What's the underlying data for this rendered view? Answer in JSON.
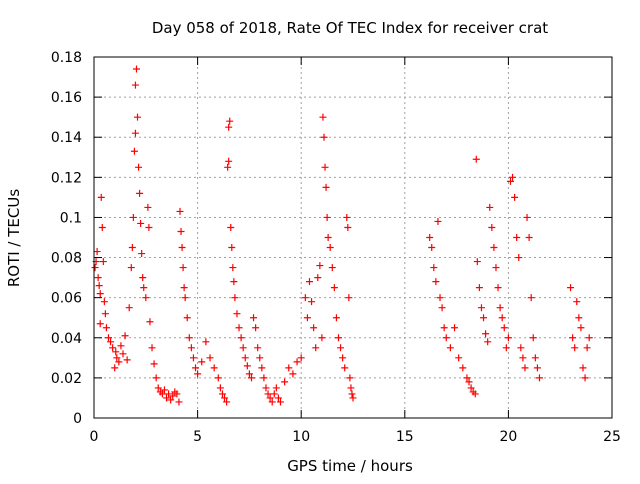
{
  "chart_data": {
    "type": "scatter",
    "title": "Day 058 of 2018, Rate Of TEC Index for receiver crat",
    "xlabel": "GPS time / hours",
    "ylabel": "ROTI / TECUs",
    "xlim": [
      0,
      25
    ],
    "ylim": [
      0,
      0.18
    ],
    "xticks": [
      0,
      5,
      10,
      15,
      20,
      25
    ],
    "xtick_labels": [
      "0",
      "5",
      "10",
      "15",
      "20",
      "25"
    ],
    "yticks": [
      0,
      0.02,
      0.04,
      0.06,
      0.08,
      0.1,
      0.12,
      0.14,
      0.16,
      0.18
    ],
    "ytick_labels": [
      "0",
      "0.02",
      "0.04",
      "0.06",
      "0.08",
      "0.1",
      "0.12",
      "0.14",
      "0.16",
      "0.18"
    ],
    "grid": true,
    "marker": "+",
    "color": "#ff0000",
    "series": [
      {
        "name": "ROTI",
        "points": [
          [
            0.05,
            0.075
          ],
          [
            0.1,
            0.078
          ],
          [
            0.15,
            0.083
          ],
          [
            0.2,
            0.07
          ],
          [
            0.25,
            0.066
          ],
          [
            0.3,
            0.062
          ],
          [
            0.3,
            0.047
          ],
          [
            0.35,
            0.11
          ],
          [
            0.4,
            0.095
          ],
          [
            0.45,
            0.078
          ],
          [
            0.5,
            0.058
          ],
          [
            0.55,
            0.052
          ],
          [
            0.6,
            0.045
          ],
          [
            0.7,
            0.04
          ],
          [
            0.8,
            0.038
          ],
          [
            0.9,
            0.035
          ],
          [
            1.0,
            0.025
          ],
          [
            1.05,
            0.033
          ],
          [
            1.1,
            0.03
          ],
          [
            1.2,
            0.028
          ],
          [
            1.3,
            0.036
          ],
          [
            1.4,
            0.032
          ],
          [
            1.5,
            0.041
          ],
          [
            1.6,
            0.029
          ],
          [
            1.7,
            0.055
          ],
          [
            1.8,
            0.075
          ],
          [
            1.85,
            0.085
          ],
          [
            1.9,
            0.1
          ],
          [
            1.95,
            0.133
          ],
          [
            2.0,
            0.142
          ],
          [
            2.0,
            0.166
          ],
          [
            2.05,
            0.174
          ],
          [
            2.1,
            0.15
          ],
          [
            2.15,
            0.125
          ],
          [
            2.2,
            0.112
          ],
          [
            2.25,
            0.097
          ],
          [
            2.3,
            0.082
          ],
          [
            2.35,
            0.07
          ],
          [
            2.4,
            0.065
          ],
          [
            2.5,
            0.06
          ],
          [
            2.6,
            0.105
          ],
          [
            2.65,
            0.095
          ],
          [
            2.7,
            0.048
          ],
          [
            2.8,
            0.035
          ],
          [
            2.9,
            0.027
          ],
          [
            3.0,
            0.02
          ],
          [
            3.1,
            0.015
          ],
          [
            3.2,
            0.013
          ],
          [
            3.3,
            0.012
          ],
          [
            3.4,
            0.014
          ],
          [
            3.5,
            0.01
          ],
          [
            3.6,
            0.012
          ],
          [
            3.7,
            0.009
          ],
          [
            3.8,
            0.011
          ],
          [
            3.9,
            0.013
          ],
          [
            4.0,
            0.012
          ],
          [
            4.1,
            0.008
          ],
          [
            4.15,
            0.103
          ],
          [
            4.2,
            0.093
          ],
          [
            4.25,
            0.085
          ],
          [
            4.3,
            0.075
          ],
          [
            4.35,
            0.065
          ],
          [
            4.4,
            0.06
          ],
          [
            4.5,
            0.05
          ],
          [
            4.6,
            0.04
          ],
          [
            4.7,
            0.035
          ],
          [
            4.8,
            0.03
          ],
          [
            4.9,
            0.025
          ],
          [
            5.0,
            0.022
          ],
          [
            5.2,
            0.028
          ],
          [
            5.4,
            0.038
          ],
          [
            5.6,
            0.03
          ],
          [
            5.8,
            0.025
          ],
          [
            6.0,
            0.02
          ],
          [
            6.1,
            0.015
          ],
          [
            6.2,
            0.012
          ],
          [
            6.3,
            0.01
          ],
          [
            6.4,
            0.008
          ],
          [
            6.45,
            0.125
          ],
          [
            6.5,
            0.128
          ],
          [
            6.5,
            0.145
          ],
          [
            6.55,
            0.148
          ],
          [
            6.6,
            0.095
          ],
          [
            6.65,
            0.085
          ],
          [
            6.7,
            0.075
          ],
          [
            6.75,
            0.068
          ],
          [
            6.8,
            0.06
          ],
          [
            6.9,
            0.052
          ],
          [
            7.0,
            0.045
          ],
          [
            7.1,
            0.04
          ],
          [
            7.2,
            0.035
          ],
          [
            7.3,
            0.03
          ],
          [
            7.4,
            0.026
          ],
          [
            7.5,
            0.022
          ],
          [
            7.6,
            0.02
          ],
          [
            7.7,
            0.05
          ],
          [
            7.8,
            0.045
          ],
          [
            7.9,
            0.035
          ],
          [
            8.0,
            0.03
          ],
          [
            8.1,
            0.025
          ],
          [
            8.2,
            0.02
          ],
          [
            8.3,
            0.015
          ],
          [
            8.4,
            0.012
          ],
          [
            8.5,
            0.01
          ],
          [
            8.6,
            0.008
          ],
          [
            8.7,
            0.012
          ],
          [
            8.8,
            0.015
          ],
          [
            8.9,
            0.01
          ],
          [
            9.0,
            0.008
          ],
          [
            9.2,
            0.018
          ],
          [
            9.4,
            0.025
          ],
          [
            9.6,
            0.022
          ],
          [
            9.8,
            0.028
          ],
          [
            10.0,
            0.03
          ],
          [
            10.2,
            0.06
          ],
          [
            10.3,
            0.05
          ],
          [
            10.4,
            0.068
          ],
          [
            10.5,
            0.058
          ],
          [
            10.6,
            0.045
          ],
          [
            10.7,
            0.035
          ],
          [
            10.8,
            0.07
          ],
          [
            10.9,
            0.076
          ],
          [
            11.0,
            0.04
          ],
          [
            11.05,
            0.15
          ],
          [
            11.1,
            0.14
          ],
          [
            11.15,
            0.125
          ],
          [
            11.2,
            0.115
          ],
          [
            11.25,
            0.1
          ],
          [
            11.3,
            0.09
          ],
          [
            11.4,
            0.085
          ],
          [
            11.5,
            0.075
          ],
          [
            11.6,
            0.065
          ],
          [
            11.7,
            0.05
          ],
          [
            11.8,
            0.04
          ],
          [
            11.9,
            0.035
          ],
          [
            12.0,
            0.03
          ],
          [
            12.1,
            0.025
          ],
          [
            12.2,
            0.1
          ],
          [
            12.25,
            0.095
          ],
          [
            12.3,
            0.06
          ],
          [
            12.35,
            0.02
          ],
          [
            12.4,
            0.015
          ],
          [
            12.45,
            0.012
          ],
          [
            12.5,
            0.01
          ],
          [
            16.2,
            0.09
          ],
          [
            16.3,
            0.085
          ],
          [
            16.4,
            0.075
          ],
          [
            16.5,
            0.068
          ],
          [
            16.6,
            0.098
          ],
          [
            16.7,
            0.06
          ],
          [
            16.8,
            0.055
          ],
          [
            16.9,
            0.045
          ],
          [
            17.0,
            0.04
          ],
          [
            17.2,
            0.035
          ],
          [
            17.4,
            0.045
          ],
          [
            17.6,
            0.03
          ],
          [
            17.8,
            0.025
          ],
          [
            18.0,
            0.02
          ],
          [
            18.1,
            0.018
          ],
          [
            18.2,
            0.015
          ],
          [
            18.3,
            0.013
          ],
          [
            18.4,
            0.012
          ],
          [
            18.45,
            0.129
          ],
          [
            18.5,
            0.078
          ],
          [
            18.6,
            0.065
          ],
          [
            18.7,
            0.055
          ],
          [
            18.8,
            0.05
          ],
          [
            18.9,
            0.042
          ],
          [
            19.0,
            0.038
          ],
          [
            19.1,
            0.105
          ],
          [
            19.2,
            0.095
          ],
          [
            19.3,
            0.085
          ],
          [
            19.4,
            0.075
          ],
          [
            19.5,
            0.065
          ],
          [
            19.6,
            0.055
          ],
          [
            19.7,
            0.05
          ],
          [
            19.8,
            0.045
          ],
          [
            19.9,
            0.035
          ],
          [
            20.0,
            0.04
          ],
          [
            20.1,
            0.118
          ],
          [
            20.2,
            0.12
          ],
          [
            20.3,
            0.11
          ],
          [
            20.4,
            0.09
          ],
          [
            20.5,
            0.08
          ],
          [
            20.6,
            0.035
          ],
          [
            20.7,
            0.03
          ],
          [
            20.8,
            0.025
          ],
          [
            20.9,
            0.1
          ],
          [
            21.0,
            0.09
          ],
          [
            21.1,
            0.06
          ],
          [
            21.2,
            0.04
          ],
          [
            21.3,
            0.03
          ],
          [
            21.4,
            0.025
          ],
          [
            21.5,
            0.02
          ],
          [
            23.0,
            0.065
          ],
          [
            23.1,
            0.04
          ],
          [
            23.2,
            0.035
          ],
          [
            23.3,
            0.058
          ],
          [
            23.4,
            0.05
          ],
          [
            23.5,
            0.045
          ],
          [
            23.6,
            0.025
          ],
          [
            23.7,
            0.02
          ],
          [
            23.8,
            0.035
          ],
          [
            23.9,
            0.04
          ]
        ]
      }
    ]
  }
}
